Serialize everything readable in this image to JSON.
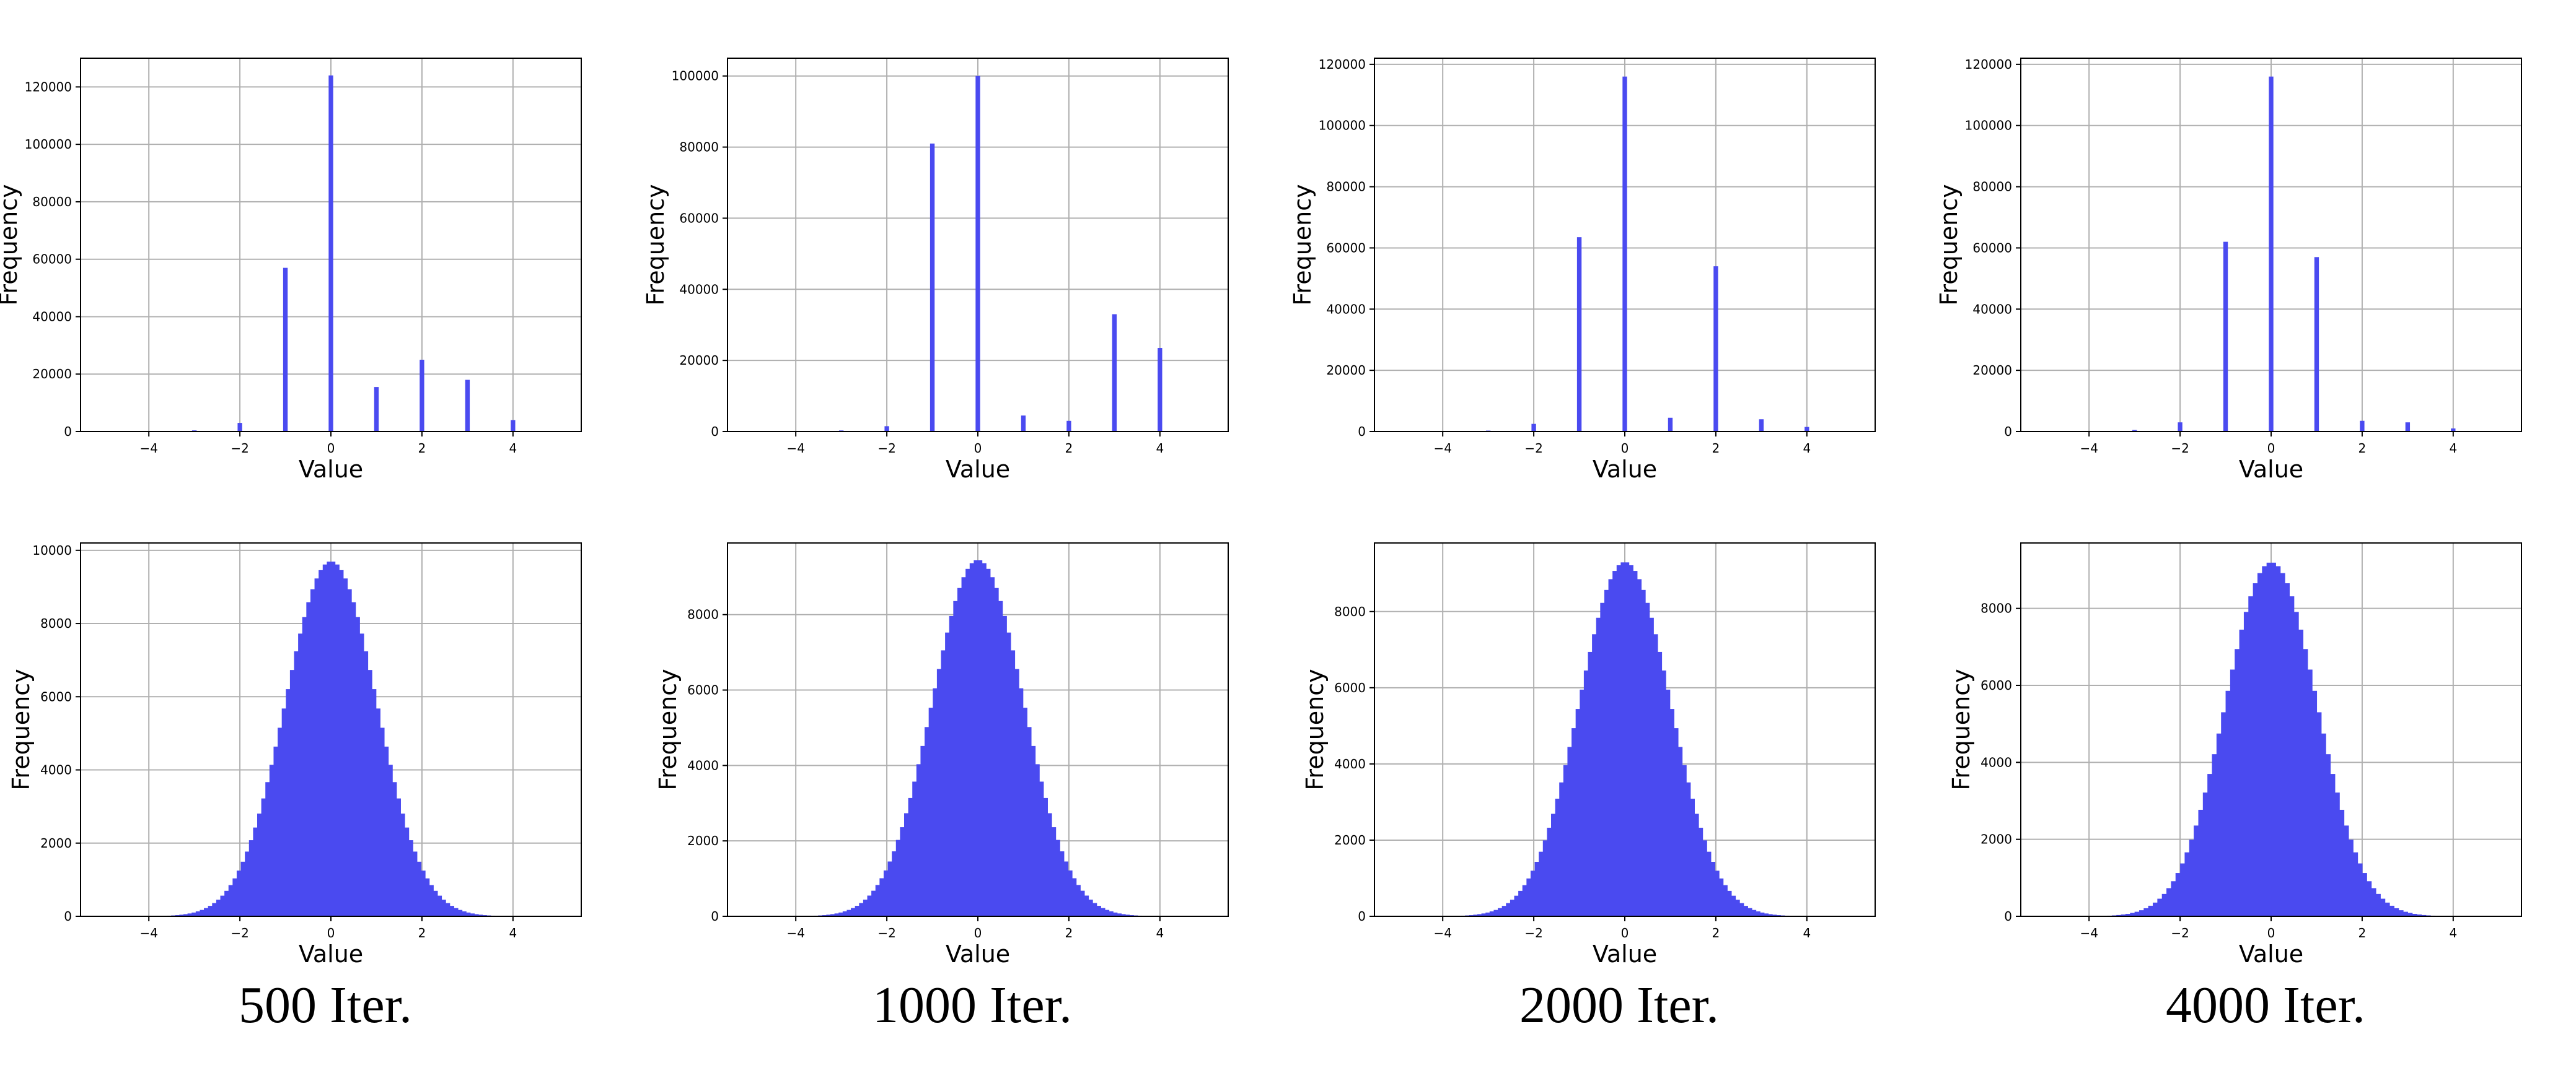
{
  "figure": {
    "bar_color": "#4a4af0",
    "grid": true,
    "captions": [
      "500 Iter.",
      "1000 Iter.",
      "2000 Iter.",
      "4000 Iter."
    ]
  },
  "chart_data": [
    {
      "id": "top-500",
      "type": "bar",
      "xlabel": "Value",
      "ylabel": "Frequency",
      "xlim": [
        -5.5,
        5.5
      ],
      "ylim": [
        0,
        130000
      ],
      "xticks": [
        -4,
        -2,
        0,
        2,
        4
      ],
      "yticks": [
        0,
        20000,
        40000,
        60000,
        80000,
        100000,
        120000
      ],
      "x": [
        -3,
        -2,
        -1,
        0,
        1,
        2,
        3,
        4
      ],
      "values": [
        400,
        3000,
        57000,
        124000,
        15500,
        25000,
        18000,
        4000
      ]
    },
    {
      "id": "top-1000",
      "type": "bar",
      "xlabel": "Value",
      "ylabel": "Frequency",
      "xlim": [
        -5.5,
        5.5
      ],
      "ylim": [
        0,
        105000
      ],
      "xticks": [
        -4,
        -2,
        0,
        2,
        4
      ],
      "yticks": [
        0,
        20000,
        40000,
        60000,
        80000,
        100000
      ],
      "x": [
        -3,
        -2,
        -1,
        0,
        1,
        2,
        3,
        4
      ],
      "values": [
        300,
        1500,
        81000,
        100000,
        4500,
        3000,
        33000,
        23500
      ]
    },
    {
      "id": "top-2000",
      "type": "bar",
      "xlabel": "Value",
      "ylabel": "Frequency",
      "xlim": [
        -5.5,
        5.5
      ],
      "ylim": [
        0,
        122000
      ],
      "xticks": [
        -4,
        -2,
        0,
        2,
        4
      ],
      "yticks": [
        0,
        20000,
        40000,
        60000,
        80000,
        100000,
        120000
      ],
      "x": [
        -3,
        -2,
        -1,
        0,
        1,
        2,
        3,
        4
      ],
      "values": [
        300,
        2500,
        63500,
        116000,
        4500,
        54000,
        4000,
        1500
      ]
    },
    {
      "id": "top-4000",
      "type": "bar",
      "xlabel": "Value",
      "ylabel": "Frequency",
      "xlim": [
        -5.5,
        5.5
      ],
      "ylim": [
        0,
        122000
      ],
      "xticks": [
        -4,
        -2,
        0,
        2,
        4
      ],
      "yticks": [
        0,
        20000,
        40000,
        60000,
        80000,
        100000,
        120000
      ],
      "x": [
        -3,
        -2,
        -1,
        0,
        1,
        2,
        3,
        4
      ],
      "values": [
        500,
        3000,
        62000,
        116000,
        57000,
        3500,
        3000,
        1000
      ]
    },
    {
      "id": "bottom-500",
      "type": "bar",
      "xlabel": "Value",
      "ylabel": "Frequency",
      "xlim": [
        -5.5,
        5.5
      ],
      "ylim": [
        0,
        10200
      ],
      "xticks": [
        -4,
        -2,
        0,
        2,
        4
      ],
      "yticks": [
        0,
        2000,
        4000,
        6000,
        8000,
        10000
      ],
      "distribution": "normal",
      "mean": 0,
      "std": 1,
      "bins": 100,
      "bin_range": [
        -4.5,
        4.5
      ],
      "peak": 9700
    },
    {
      "id": "bottom-1000",
      "type": "bar",
      "xlabel": "Value",
      "ylabel": "Frequency",
      "xlim": [
        -5.5,
        5.5
      ],
      "ylim": [
        0,
        9900
      ],
      "xticks": [
        -4,
        -2,
        0,
        2,
        4
      ],
      "yticks": [
        0,
        2000,
        4000,
        6000,
        8000
      ],
      "distribution": "normal",
      "mean": 0,
      "std": 1,
      "bins": 100,
      "bin_range": [
        -4.5,
        4.5
      ],
      "peak": 9450
    },
    {
      "id": "bottom-2000",
      "type": "bar",
      "xlabel": "Value",
      "ylabel": "Frequency",
      "xlim": [
        -5.5,
        5.5
      ],
      "ylim": [
        0,
        9800
      ],
      "xticks": [
        -4,
        -2,
        0,
        2,
        4
      ],
      "yticks": [
        0,
        2000,
        4000,
        6000,
        8000
      ],
      "distribution": "normal",
      "mean": 0,
      "std": 1,
      "bins": 100,
      "bin_range": [
        -4.5,
        4.5
      ],
      "peak": 9300
    },
    {
      "id": "bottom-4000",
      "type": "bar",
      "xlabel": "Value",
      "ylabel": "Frequency",
      "xlim": [
        -5.5,
        5.5
      ],
      "ylim": [
        0,
        9700
      ],
      "xticks": [
        -4,
        -2,
        0,
        2,
        4
      ],
      "yticks": [
        0,
        2000,
        4000,
        6000,
        8000
      ],
      "distribution": "normal",
      "mean": 0,
      "std": 1,
      "bins": 100,
      "bin_range": [
        -5,
        5
      ],
      "peak": 9200
    }
  ]
}
